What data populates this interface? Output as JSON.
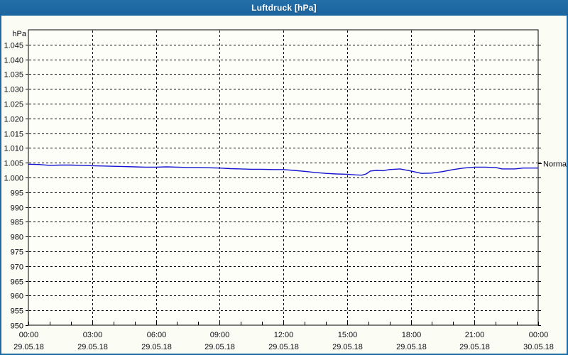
{
  "window": {
    "title": "Luftdruck [hPa]"
  },
  "colors": {
    "frame_blue": "#1f6aa5",
    "content_background": "#fbfdf4",
    "plot_background": "#fdfef8",
    "grid_color": "#000000",
    "axis_color": "#000000",
    "label_color": "#0b0b14",
    "series_color": "#1414d0",
    "title_text": "#ffffff"
  },
  "chart_data": {
    "type": "line",
    "title": "Luftdruck [hPa]",
    "unit_label": "hPa",
    "ylabel": "hPa",
    "xlabel": "",
    "grid": true,
    "legend_position": "none",
    "ylim": [
      950,
      1050
    ],
    "y_tick_step": 5,
    "y_ticks": [
      {
        "value": 1045,
        "label": "1.045"
      },
      {
        "value": 1040,
        "label": "1.040"
      },
      {
        "value": 1035,
        "label": "1.035"
      },
      {
        "value": 1030,
        "label": "1.030"
      },
      {
        "value": 1025,
        "label": "1.025"
      },
      {
        "value": 1020,
        "label": "1.020"
      },
      {
        "value": 1015,
        "label": "1.015"
      },
      {
        "value": 1010,
        "label": "1.010"
      },
      {
        "value": 1005,
        "label": "1.005"
      },
      {
        "value": 1000,
        "label": "1.000"
      },
      {
        "value": 995,
        "label": "995"
      },
      {
        "value": 990,
        "label": "990"
      },
      {
        "value": 985,
        "label": "985"
      },
      {
        "value": 980,
        "label": "980"
      },
      {
        "value": 975,
        "label": "975"
      },
      {
        "value": 970,
        "label": "970"
      },
      {
        "value": 965,
        "label": "965"
      },
      {
        "value": 960,
        "label": "960"
      },
      {
        "value": 955,
        "label": "955"
      },
      {
        "value": 950,
        "label": "950"
      }
    ],
    "x_range_hours": [
      0,
      24
    ],
    "x_minor_tick_hours": 1,
    "x_ticks": [
      {
        "hour": 0,
        "time": "00:00",
        "date": "29.05.18"
      },
      {
        "hour": 3,
        "time": "03:00",
        "date": "29.05.18"
      },
      {
        "hour": 6,
        "time": "06:00",
        "date": "29.05.18"
      },
      {
        "hour": 9,
        "time": "09:00",
        "date": "29.05.18"
      },
      {
        "hour": 12,
        "time": "12:00",
        "date": "29.05.18"
      },
      {
        "hour": 15,
        "time": "15:00",
        "date": "29.05.18"
      },
      {
        "hour": 18,
        "time": "18:00",
        "date": "29.05.18"
      },
      {
        "hour": 21,
        "time": "21:00",
        "date": "29.05.18"
      },
      {
        "hour": 24,
        "time": "00:00",
        "date": "30.05.18"
      }
    ],
    "annotations": [
      {
        "label": "Normal",
        "value": 1004.8,
        "side": "right"
      }
    ],
    "series": [
      {
        "name": "Luftdruck",
        "color": "#1414d0",
        "points": [
          [
            0,
            1004.5
          ],
          [
            0.5,
            1004.4
          ],
          [
            1,
            1004.1
          ],
          [
            1.5,
            1004.2
          ],
          [
            2,
            1004.2
          ],
          [
            2.5,
            1004.1
          ],
          [
            3,
            1004.0
          ],
          [
            3.5,
            1003.9
          ],
          [
            4,
            1003.8
          ],
          [
            4.5,
            1003.7
          ],
          [
            5,
            1003.6
          ],
          [
            5.5,
            1003.5
          ],
          [
            6,
            1003.5
          ],
          [
            6.5,
            1003.6
          ],
          [
            7,
            1003.5
          ],
          [
            7.5,
            1003.4
          ],
          [
            8,
            1003.4
          ],
          [
            8.5,
            1003.3
          ],
          [
            9,
            1003.2
          ],
          [
            9.5,
            1003.0
          ],
          [
            10,
            1002.9
          ],
          [
            10.5,
            1002.8
          ],
          [
            11,
            1002.8
          ],
          [
            11.5,
            1002.7
          ],
          [
            12,
            1002.7
          ],
          [
            12.5,
            1002.4
          ],
          [
            13,
            1002.1
          ],
          [
            13.5,
            1001.7
          ],
          [
            14,
            1001.4
          ],
          [
            14.5,
            1001.2
          ],
          [
            15,
            1001.1
          ],
          [
            15.4,
            1000.9
          ],
          [
            15.7,
            1000.8
          ],
          [
            15.9,
            1001.2
          ],
          [
            16.1,
            1002.2
          ],
          [
            16.4,
            1002.4
          ],
          [
            16.7,
            1002.3
          ],
          [
            17,
            1002.7
          ],
          [
            17.5,
            1002.9
          ],
          [
            18,
            1002.2
          ],
          [
            18.5,
            1001.4
          ],
          [
            19,
            1001.5
          ],
          [
            19.5,
            1002.0
          ],
          [
            20,
            1002.7
          ],
          [
            20.5,
            1003.2
          ],
          [
            21,
            1003.5
          ],
          [
            21.5,
            1003.5
          ],
          [
            22,
            1003.4
          ],
          [
            22.3,
            1002.9
          ],
          [
            22.9,
            1002.9
          ],
          [
            23.3,
            1003.2
          ],
          [
            23.7,
            1003.2
          ],
          [
            24,
            1003.2
          ]
        ]
      }
    ]
  }
}
